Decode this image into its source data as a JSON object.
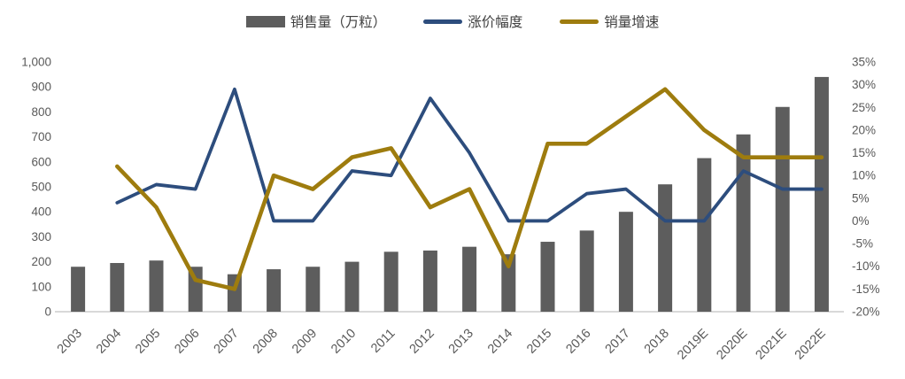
{
  "chart_data": {
    "type": "combo",
    "title": "",
    "legend_position": "top",
    "grid": false,
    "categories": [
      "2003",
      "2004",
      "2005",
      "2006",
      "2007",
      "2008",
      "2009",
      "2010",
      "2011",
      "2012",
      "2013",
      "2014",
      "2015",
      "2016",
      "2017",
      "2018",
      "2019E",
      "2020E",
      "2021E",
      "2022E"
    ],
    "series": [
      {
        "name": "销售量（万粒）",
        "type": "bar",
        "axis": "left",
        "color": "#5d5d5d",
        "values": [
          180,
          195,
          205,
          180,
          150,
          170,
          180,
          200,
          240,
          245,
          260,
          230,
          280,
          325,
          400,
          510,
          615,
          710,
          820,
          940
        ]
      },
      {
        "name": "涨价幅度",
        "type": "line",
        "axis": "right",
        "color": "#2d4d7d",
        "values": [
          null,
          4,
          8,
          7,
          29,
          0,
          0,
          11,
          10,
          27,
          15,
          0,
          0,
          6,
          7,
          0,
          0,
          11,
          7,
          7
        ]
      },
      {
        "name": "销量增速",
        "type": "line",
        "axis": "right",
        "color": "#9e7c0e",
        "values": [
          null,
          12,
          3,
          -13,
          -15,
          10,
          7,
          14,
          16,
          3,
          7,
          -10,
          17,
          17,
          23,
          29,
          20,
          14,
          14,
          14
        ]
      }
    ],
    "left_axis": {
      "min": 0,
      "max": 1000,
      "step": 100,
      "tick_labels": [
        "1,000",
        "900",
        "800",
        "700",
        "600",
        "500",
        "400",
        "300",
        "200",
        "100",
        "0"
      ]
    },
    "right_axis": {
      "min": -20,
      "max": 35,
      "step": 5,
      "tick_labels": [
        "35%",
        "30%",
        "25%",
        "20%",
        "15%",
        "10%",
        "5%",
        "0%",
        "-5%",
        "-10%",
        "-15%",
        "-20%"
      ]
    },
    "colors": {
      "background": "#ffffff",
      "axis_text": "#595959",
      "axis_line": "#d9d9d9",
      "legend_text": "#404040"
    }
  }
}
